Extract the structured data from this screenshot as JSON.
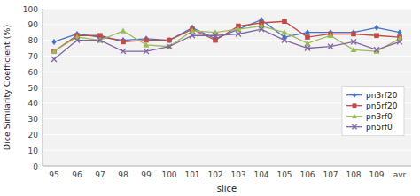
{
  "chart_data": {
    "type": "line",
    "x_label": "slice",
    "y_label": "Dice Similarity Coefficient (%)",
    "categories": [
      "95",
      "96",
      "97",
      "98",
      "99",
      "100",
      "101",
      "102",
      "103",
      "104",
      "105",
      "106",
      "107",
      "108",
      "109",
      "avr"
    ],
    "series": [
      {
        "name": "pn3rf20",
        "color": "#4472C4",
        "marker": "diamond",
        "values": [
          79,
          84,
          82,
          80,
          81,
          80,
          88,
          81,
          87,
          93,
          82,
          85,
          85,
          85,
          88,
          85
        ]
      },
      {
        "name": "pn5rf20",
        "color": "#BE4B48",
        "marker": "square",
        "values": [
          73,
          83,
          83,
          79,
          80,
          80,
          87,
          80,
          89,
          91,
          92,
          82,
          84,
          84,
          83,
          82
        ]
      },
      {
        "name": "pn3rf0",
        "color": "#9BBB59",
        "marker": "triangle",
        "values": [
          73,
          82,
          80,
          86,
          77,
          76,
          86,
          85,
          87,
          89,
          85,
          78,
          83,
          74,
          73,
          81
        ]
      },
      {
        "name": "pn5rf0",
        "color": "#8064A2",
        "marker": "x",
        "values": [
          68,
          80,
          80,
          73,
          73,
          76,
          83,
          83,
          84,
          87,
          80,
          75,
          76,
          79,
          74,
          79
        ]
      }
    ],
    "ylim": [
      0,
      100
    ],
    "yticks": [
      0,
      10,
      20,
      30,
      40,
      50,
      60,
      70,
      80,
      90,
      100
    ],
    "grid": true,
    "legend": "lower right"
  }
}
